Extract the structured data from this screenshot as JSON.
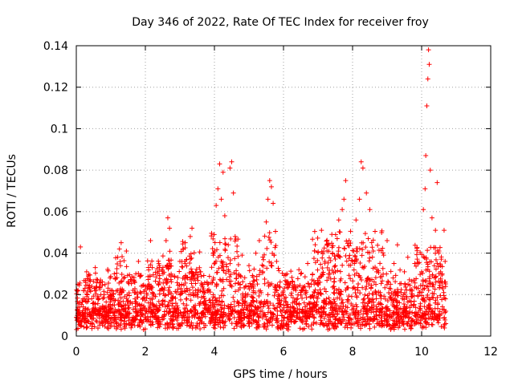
{
  "chart_data": {
    "type": "scatter",
    "title": "Day 346 of 2022, Rate Of TEC Index for receiver froy",
    "xlabel": "GPS time / hours",
    "ylabel": "ROTI / TECUs",
    "xlim": [
      0,
      12
    ],
    "ylim": [
      0,
      0.14
    ],
    "xticks": [
      0,
      2,
      4,
      6,
      8,
      10,
      12
    ],
    "yticks": [
      0,
      0.02,
      0.04,
      0.06,
      0.08,
      0.1,
      0.12,
      0.14
    ],
    "xtick_labels": [
      "0",
      "2",
      "4",
      "6",
      "8",
      "10",
      "12"
    ],
    "ytick_labels": [
      "0",
      "0.02",
      "0.04",
      "0.06",
      "0.08",
      "0.1",
      "0.12",
      "0.14"
    ],
    "grid": true,
    "marker": "+",
    "marker_color": "#ff0000",
    "series": [
      {
        "name": "ROTI",
        "points": [
          [
            0.0,
            0.009
          ],
          [
            0.05,
            0.022
          ],
          [
            0.1,
            0.014
          ],
          [
            0.12,
            0.043
          ],
          [
            0.15,
            0.007
          ],
          [
            0.2,
            0.018
          ],
          [
            0.25,
            0.011
          ],
          [
            0.3,
            0.031
          ],
          [
            0.35,
            0.013
          ],
          [
            0.4,
            0.006
          ],
          [
            0.45,
            0.024
          ],
          [
            0.5,
            0.016
          ],
          [
            0.55,
            0.033
          ],
          [
            0.6,
            0.01
          ],
          [
            0.7,
            0.027
          ],
          [
            0.8,
            0.014
          ],
          [
            0.85,
            0.008
          ],
          [
            0.9,
            0.021
          ],
          [
            1.0,
            0.012
          ],
          [
            1.1,
            0.03
          ],
          [
            1.2,
            0.038
          ],
          [
            1.25,
            0.042
          ],
          [
            1.3,
            0.045
          ],
          [
            1.4,
            0.019
          ],
          [
            1.5,
            0.011
          ],
          [
            1.6,
            0.027
          ],
          [
            1.7,
            0.008
          ],
          [
            1.8,
            0.036
          ],
          [
            1.9,
            0.015
          ],
          [
            2.0,
            0.024
          ],
          [
            2.1,
            0.013
          ],
          [
            2.15,
            0.046
          ],
          [
            2.2,
            0.033
          ],
          [
            2.3,
            0.009
          ],
          [
            2.4,
            0.026
          ],
          [
            2.5,
            0.015
          ],
          [
            2.6,
            0.046
          ],
          [
            2.65,
            0.057
          ],
          [
            2.7,
            0.052
          ],
          [
            2.8,
            0.019
          ],
          [
            2.9,
            0.012
          ],
          [
            3.0,
            0.036
          ],
          [
            3.1,
            0.042
          ],
          [
            3.2,
            0.018
          ],
          [
            3.3,
            0.048
          ],
          [
            3.35,
            0.052
          ],
          [
            3.4,
            0.027
          ],
          [
            3.5,
            0.011
          ],
          [
            3.6,
            0.031
          ],
          [
            3.7,
            0.016
          ],
          [
            3.8,
            0.022
          ],
          [
            3.9,
            0.009
          ],
          [
            4.0,
            0.041
          ],
          [
            4.05,
            0.063
          ],
          [
            4.1,
            0.071
          ],
          [
            4.15,
            0.083
          ],
          [
            4.2,
            0.066
          ],
          [
            4.25,
            0.079
          ],
          [
            4.3,
            0.058
          ],
          [
            4.4,
            0.044
          ],
          [
            4.45,
            0.081
          ],
          [
            4.5,
            0.084
          ],
          [
            4.55,
            0.069
          ],
          [
            4.6,
            0.048
          ],
          [
            4.7,
            0.029
          ],
          [
            4.8,
            0.039
          ],
          [
            4.9,
            0.016
          ],
          [
            5.0,
            0.034
          ],
          [
            5.1,
            0.025
          ],
          [
            5.2,
            0.04
          ],
          [
            5.3,
            0.046
          ],
          [
            5.4,
            0.031
          ],
          [
            5.5,
            0.055
          ],
          [
            5.55,
            0.066
          ],
          [
            5.6,
            0.075
          ],
          [
            5.65,
            0.072
          ],
          [
            5.7,
            0.064
          ],
          [
            5.8,
            0.036
          ],
          [
            5.9,
            0.015
          ],
          [
            6.0,
            0.02
          ],
          [
            6.1,
            0.03
          ],
          [
            6.2,
            0.012
          ],
          [
            6.3,
            0.024
          ],
          [
            6.4,
            0.018
          ],
          [
            6.5,
            0.03
          ],
          [
            6.6,
            0.016
          ],
          [
            6.7,
            0.035
          ],
          [
            6.8,
            0.025
          ],
          [
            6.9,
            0.041
          ],
          [
            7.0,
            0.021
          ],
          [
            7.1,
            0.051
          ],
          [
            7.2,
            0.036
          ],
          [
            7.3,
            0.044
          ],
          [
            7.4,
            0.049
          ],
          [
            7.5,
            0.031
          ],
          [
            7.6,
            0.056
          ],
          [
            7.7,
            0.061
          ],
          [
            7.75,
            0.066
          ],
          [
            7.8,
            0.075
          ],
          [
            7.9,
            0.046
          ],
          [
            8.0,
            0.036
          ],
          [
            8.1,
            0.056
          ],
          [
            8.2,
            0.066
          ],
          [
            8.25,
            0.084
          ],
          [
            8.3,
            0.081
          ],
          [
            8.4,
            0.069
          ],
          [
            8.5,
            0.061
          ],
          [
            8.6,
            0.041
          ],
          [
            8.7,
            0.031
          ],
          [
            8.8,
            0.021
          ],
          [
            8.9,
            0.039
          ],
          [
            9.0,
            0.046
          ],
          [
            9.1,
            0.025
          ],
          [
            9.2,
            0.035
          ],
          [
            9.3,
            0.044
          ],
          [
            9.4,
            0.021
          ],
          [
            9.5,
            0.031
          ],
          [
            9.6,
            0.038
          ],
          [
            9.7,
            0.019
          ],
          [
            9.8,
            0.035
          ],
          [
            9.9,
            0.023
          ],
          [
            10.0,
            0.031
          ],
          [
            10.05,
            0.061
          ],
          [
            10.1,
            0.071
          ],
          [
            10.12,
            0.087
          ],
          [
            10.15,
            0.111
          ],
          [
            10.18,
            0.124
          ],
          [
            10.2,
            0.138
          ],
          [
            10.22,
            0.131
          ],
          [
            10.25,
            0.08
          ],
          [
            10.3,
            0.057
          ],
          [
            10.4,
            0.051
          ],
          [
            10.45,
            0.074
          ],
          [
            10.5,
            0.041
          ],
          [
            10.55,
            0.031
          ],
          [
            10.6,
            0.026
          ],
          [
            10.65,
            0.051
          ],
          [
            10.68,
            0.036
          ],
          [
            10.7,
            0.012
          ],
          [
            10.7,
            0.006
          ]
        ]
      }
    ]
  }
}
